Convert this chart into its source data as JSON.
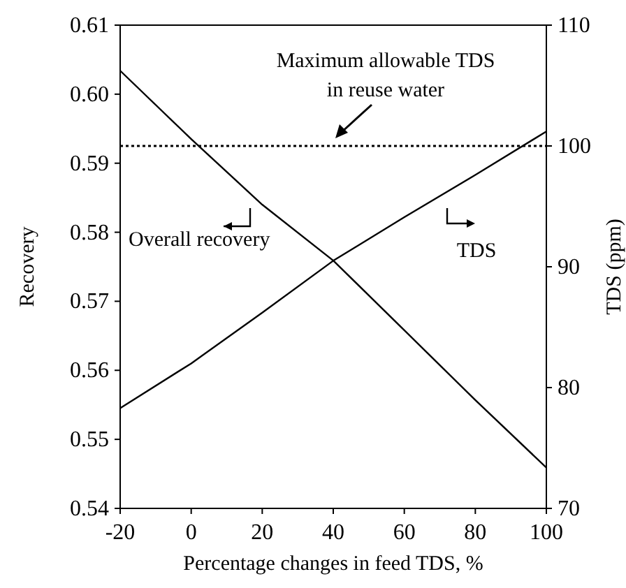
{
  "chart_data": {
    "type": "line",
    "xlabel": "Percentage changes in feed TDS, %",
    "ylabel": "Recovery",
    "y2label": "TDS (ppm)",
    "x": [
      -20,
      0,
      20,
      40,
      60,
      80,
      100
    ],
    "series": [
      {
        "name": "Overall recovery",
        "color": "#000000",
        "values": [
          0.6034,
          0.5935,
          0.584,
          0.5759,
          0.5658,
          0.5557,
          0.5459
        ]
      },
      {
        "name": "TDS",
        "color": "#000000",
        "axis": "y2",
        "values": [
          78.3,
          82.0,
          86.2,
          90.5,
          94.1,
          97.6,
          101.2
        ]
      }
    ],
    "xlim": [
      -20,
      100
    ],
    "xticks": [
      -20,
      0,
      20,
      40,
      60,
      80,
      100
    ],
    "ylim": [
      0.54,
      0.61
    ],
    "yticks": [
      {
        "value": 0.54,
        "label": "0.54"
      },
      {
        "value": 0.55,
        "label": "0.55"
      },
      {
        "value": 0.56,
        "label": "0.56"
      },
      {
        "value": 0.57,
        "label": "0.57"
      },
      {
        "value": 0.58,
        "label": "0.58"
      },
      {
        "value": 0.59,
        "label": "0.59"
      },
      {
        "value": 0.6,
        "label": "0.60"
      },
      {
        "value": 0.61,
        "label": "0.61"
      }
    ],
    "y2lim": [
      70,
      110
    ],
    "y2ticks": [
      70,
      80,
      90,
      100,
      110
    ],
    "ref_lines": [
      {
        "axis": "y2",
        "value": 100,
        "label": "Maximum allowable TDS in reuse water",
        "line_style": "dotted",
        "color": "#000000"
      }
    ],
    "grid": false,
    "legend": "left",
    "marker": "none",
    "line_style": "solid"
  }
}
